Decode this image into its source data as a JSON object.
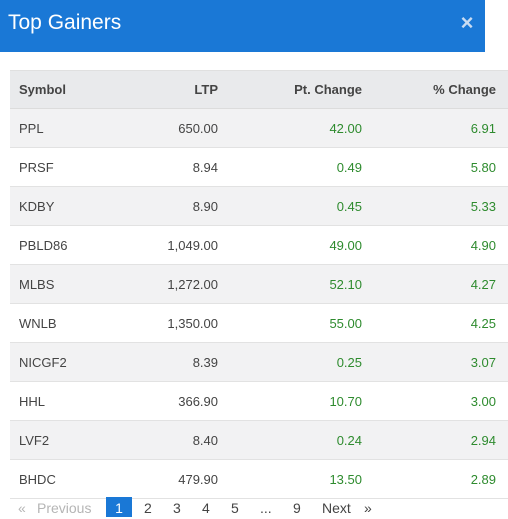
{
  "header": {
    "title": "Top Gainers",
    "close_glyph": "×",
    "close_icon": "close-icon"
  },
  "table": {
    "columns": [
      "Symbol",
      "LTP",
      "Pt. Change",
      "% Change"
    ],
    "rows": [
      [
        "PPL",
        "650.00",
        "42.00",
        "6.91"
      ],
      [
        "PRSF",
        "8.94",
        "0.49",
        "5.80"
      ],
      [
        "KDBY",
        "8.90",
        "0.45",
        "5.33"
      ],
      [
        "PBLD86",
        "1,049.00",
        "49.00",
        "4.90"
      ],
      [
        "MLBS",
        "1,272.00",
        "52.10",
        "4.27"
      ],
      [
        "WNLB",
        "1,350.00",
        "55.00",
        "4.25"
      ],
      [
        "NICGF2",
        "8.39",
        "0.25",
        "3.07"
      ],
      [
        "HHL",
        "366.90",
        "10.70",
        "3.00"
      ],
      [
        "LVF2",
        "8.40",
        "0.24",
        "2.94"
      ],
      [
        "BHDC",
        "479.90",
        "13.50",
        "2.89"
      ]
    ],
    "positive_color": "#2e8b2e"
  },
  "pagination": {
    "prev_arrow": "«",
    "prev_label": "Previous",
    "pages": [
      "1",
      "2",
      "3",
      "4",
      "5",
      "...",
      "9"
    ],
    "active_page": "1",
    "next_label": "Next",
    "next_arrow": "»"
  },
  "colors": {
    "accent": "#1a78d6"
  }
}
